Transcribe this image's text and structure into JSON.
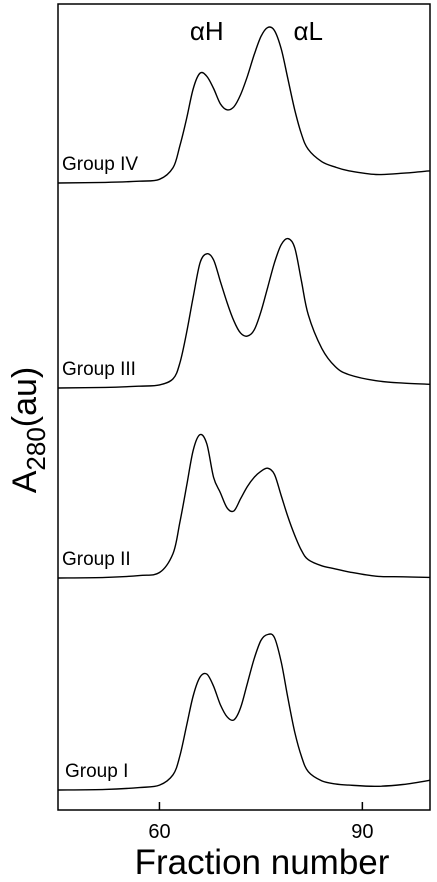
{
  "chart_data": {
    "type": "line",
    "xlabel": "Fraction number",
    "ylabel_base": "A",
    "ylabel_sub": "280",
    "ylabel_unit": "(au)",
    "x_ticks": [
      60,
      90
    ],
    "xlim": [
      45,
      100
    ],
    "grid": false,
    "peak_labels": [
      {
        "text": "αH",
        "x": 67
      },
      {
        "text": "αL",
        "x": 82
      }
    ],
    "series": [
      {
        "name": "Group IV",
        "x": [
          45,
          52,
          57,
          60,
          62,
          63,
          64,
          65,
          66,
          67,
          68,
          69,
          70,
          71,
          72,
          73,
          74,
          75,
          76,
          77,
          78,
          79,
          80,
          81,
          82,
          84,
          86,
          88,
          92,
          96,
          100
        ],
        "y": [
          0,
          0.1,
          0.3,
          0.6,
          2.5,
          6.0,
          10.5,
          15.5,
          18.0,
          17.5,
          15.5,
          13.0,
          12.0,
          12.5,
          14.5,
          17.5,
          21.0,
          24.0,
          25.5,
          25.0,
          22.0,
          17.0,
          12.0,
          8.0,
          5.5,
          3.5,
          2.6,
          2.0,
          1.4,
          1.6,
          2.0
        ]
      },
      {
        "name": "Group III",
        "x": [
          45,
          52,
          57,
          60,
          62,
          63,
          64,
          65,
          66,
          67,
          68,
          69,
          70,
          71,
          72,
          73,
          74,
          75,
          76,
          77,
          78,
          79,
          80,
          81,
          82,
          84,
          86,
          88,
          92,
          96,
          100
        ],
        "y": [
          0,
          0.1,
          0.3,
          0.5,
          1.5,
          4.0,
          9.0,
          15.0,
          20.5,
          22.0,
          21.0,
          17.5,
          14.0,
          11.0,
          9.0,
          8.5,
          9.5,
          12.5,
          16.5,
          20.5,
          23.5,
          24.5,
          23.0,
          17.5,
          12.0,
          6.5,
          3.5,
          2.2,
          1.2,
          0.8,
          0.6
        ]
      },
      {
        "name": "Group II",
        "x": [
          45,
          52,
          57,
          60,
          62,
          63,
          64,
          65,
          66,
          67,
          68,
          69,
          70,
          71,
          72,
          73,
          74,
          75,
          76,
          77,
          78,
          79,
          80,
          81,
          82,
          84,
          86,
          88,
          92,
          96,
          100
        ],
        "y": [
          0,
          0.1,
          0.4,
          0.9,
          4.0,
          9.0,
          15.0,
          21.0,
          23.5,
          22.0,
          16.5,
          14.0,
          11.5,
          11.0,
          13.0,
          15.0,
          16.5,
          17.5,
          18.0,
          17.0,
          13.5,
          10.0,
          7.0,
          4.5,
          3.0,
          2.0,
          1.5,
          1.0,
          0.3,
          0.2,
          0.1
        ]
      },
      {
        "name": "Group I",
        "x": [
          45,
          52,
          57,
          60,
          62,
          63,
          64,
          65,
          66,
          67,
          68,
          69,
          70,
          71,
          72,
          73,
          74,
          75,
          76,
          77,
          78,
          79,
          80,
          81,
          82,
          84,
          86,
          88,
          92,
          96,
          100
        ],
        "y": [
          0,
          0.1,
          0.4,
          0.8,
          2.5,
          5.5,
          10.5,
          15.5,
          18.5,
          19.0,
          17.0,
          14.0,
          12.0,
          11.5,
          13.5,
          17.5,
          21.5,
          24.5,
          25.5,
          25.0,
          21.0,
          15.0,
          9.5,
          5.5,
          3.0,
          1.5,
          1.0,
          0.8,
          0.6,
          0.9,
          1.6
        ]
      }
    ]
  }
}
